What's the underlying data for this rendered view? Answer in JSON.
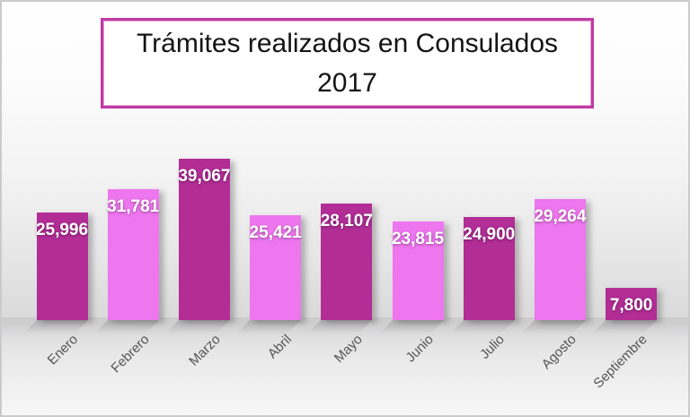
{
  "page": {
    "canvas_border_color": "#cacbcc",
    "background_top": "#ffffff",
    "background_floor": "#dadadb"
  },
  "title_box": {
    "line1": "Trámites realizados en Consulados",
    "line2": "2017",
    "border_color": "#c13aa4",
    "text_color": "#141414",
    "background": "#ffffff"
  },
  "chart_data": {
    "type": "bar",
    "title": "Trámites realizados en Consulados 2017",
    "categories": [
      "Enero",
      "Febrero",
      "Marzo",
      "Abril",
      "Mayo",
      "Junio",
      "Julio",
      "Agosto",
      "Septiembre"
    ],
    "values": [
      25996,
      31781,
      39067,
      25421,
      28107,
      23815,
      24900,
      29264,
      7800
    ],
    "value_labels": [
      "25,996",
      "31,781",
      "39,067",
      "25,421",
      "28,107",
      "23,815",
      "24,900",
      "29,264",
      "7,800"
    ],
    "xlabel": "",
    "ylabel": "",
    "ylim": [
      0,
      40000
    ],
    "grid": false,
    "legend": "none",
    "bar_colors_alternating": [
      "#b22d96",
      "#ee76ee"
    ],
    "value_label_color": "#ffffff",
    "category_label_color": "#555555"
  }
}
